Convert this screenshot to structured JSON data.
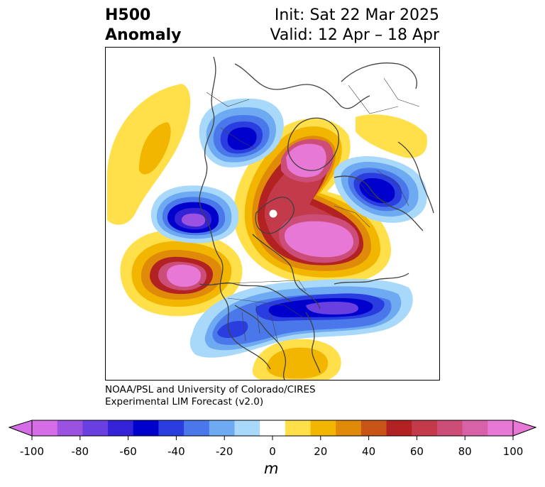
{
  "title": {
    "left_line1": "H500",
    "left_line2": "Anomaly",
    "right_line1": "Init: Sat 22 Mar 2025",
    "right_line2": "Valid: 12 Apr – 18 Apr"
  },
  "credit": {
    "line1": "NOAA/PSL and University of Colorado/CIRES",
    "line2": "Experimental LIM Forecast (v2.0)"
  },
  "colorbar": {
    "unit": "m",
    "ticks": [
      "-100",
      "-80",
      "-60",
      "-40",
      "-20",
      "0",
      "20",
      "40",
      "60",
      "80",
      "100"
    ],
    "levels": [
      -100,
      -90,
      -80,
      -70,
      -60,
      -50,
      -40,
      -30,
      -20,
      -10,
      10,
      20,
      30,
      40,
      50,
      60,
      70,
      80,
      90,
      100
    ],
    "colors": [
      "#d56ee6",
      "#9c52e0",
      "#6a3fe0",
      "#3322d6",
      "#0000cc",
      "#2a3ee0",
      "#4a78ea",
      "#6eaaf2",
      "#a8d8fa",
      "#ffffff",
      "#ffe04a",
      "#f2b600",
      "#e08a0a",
      "#c85418",
      "#b22222",
      "#c33a4a",
      "#cc4e78",
      "#d862a8",
      "#e878d6"
    ],
    "extend_low_color": "#d56ee6",
    "extend_high_color": "#e878d6"
  },
  "map": {
    "projection": "north polar stereographic",
    "pole_marker_color": "#ffffff"
  }
}
